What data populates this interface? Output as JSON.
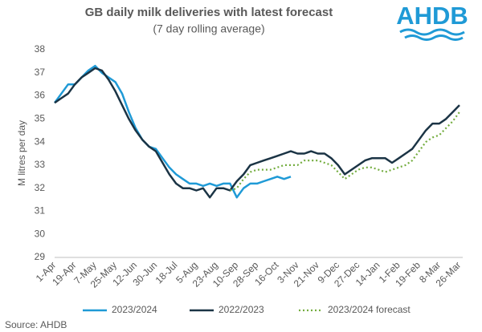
{
  "chart_data": {
    "type": "line",
    "title": "GB daily milk deliveries with latest forecast",
    "subtitle": "(7 day rolling average)",
    "y_label": "M litres per day",
    "source": "Source: AHDB",
    "logo": "AHDB",
    "categories": [
      "1-Apr",
      null,
      null,
      "19-Apr",
      null,
      null,
      "7-May",
      null,
      null,
      "25-May",
      null,
      null,
      "12-Jun",
      null,
      null,
      "30-Jun",
      null,
      null,
      "18-Jul",
      null,
      null,
      "5-Aug",
      null,
      null,
      "23-Aug",
      null,
      null,
      "10-Sep",
      null,
      null,
      "28-Sep",
      null,
      null,
      "16-Oct",
      null,
      null,
      "3-Nov",
      null,
      null,
      "21-Nov",
      null,
      null,
      "9-Dec",
      null,
      null,
      "27-Dec",
      null,
      null,
      "14-Jan",
      null,
      null,
      "1-Feb",
      null,
      null,
      "19-Feb",
      null,
      null,
      "8-Mar",
      null,
      null,
      "26-Mar"
    ],
    "series": [
      {
        "name": "2023/2024",
        "color": "#1f9ad6",
        "dash": "solid",
        "values": [
          35.7,
          36.1,
          36.5,
          36.5,
          36.8,
          37.1,
          37.3,
          37.0,
          36.8,
          36.6,
          36.1,
          35.3,
          34.6,
          34.1,
          33.8,
          33.7,
          33.3,
          32.9,
          32.6,
          32.4,
          32.2,
          32.2,
          32.1,
          32.2,
          32.1,
          32.2,
          32.2,
          31.6,
          32.0,
          32.2,
          32.2,
          32.3,
          32.4,
          32.5,
          32.4,
          32.5,
          null,
          null,
          null,
          null,
          null,
          null,
          null,
          null,
          null,
          null,
          null,
          null,
          null,
          null,
          null,
          null,
          null,
          null,
          null,
          null,
          null,
          null,
          null,
          null,
          null
        ]
      },
      {
        "name": "2022/2023",
        "color": "#1b3445",
        "dash": "solid",
        "values": [
          35.7,
          35.9,
          36.1,
          36.5,
          36.8,
          37.0,
          37.2,
          37.1,
          36.7,
          36.2,
          35.6,
          35.0,
          34.5,
          34.1,
          33.8,
          33.6,
          33.1,
          32.6,
          32.2,
          32.0,
          32.0,
          31.9,
          32.0,
          31.6,
          32.0,
          32.0,
          31.9,
          32.3,
          32.6,
          33.0,
          33.1,
          33.2,
          33.3,
          33.4,
          33.5,
          33.6,
          33.5,
          33.5,
          33.6,
          33.5,
          33.5,
          33.3,
          33.0,
          32.6,
          32.8,
          33.0,
          33.2,
          33.3,
          33.3,
          33.3,
          33.1,
          33.3,
          33.5,
          33.7,
          34.1,
          34.5,
          34.8,
          34.8,
          35.0,
          35.3,
          35.6
        ]
      },
      {
        "name": "2023/2024 forecast",
        "color": "#74ad3f",
        "dash": "dotted",
        "values": [
          null,
          null,
          null,
          null,
          null,
          null,
          null,
          null,
          null,
          null,
          null,
          null,
          null,
          null,
          null,
          null,
          null,
          null,
          null,
          null,
          null,
          null,
          null,
          null,
          null,
          null,
          31.9,
          32.0,
          32.4,
          32.7,
          32.8,
          32.8,
          32.8,
          32.9,
          33.0,
          33.0,
          33.0,
          33.2,
          33.2,
          33.2,
          33.1,
          33.0,
          32.7,
          32.4,
          32.6,
          32.8,
          32.9,
          32.9,
          32.8,
          32.7,
          32.8,
          32.9,
          33.0,
          33.2,
          33.6,
          34.0,
          34.2,
          34.3,
          34.6,
          34.9,
          35.3
        ]
      }
    ],
    "ylim": [
      29,
      38
    ],
    "yticks": [
      29,
      30,
      31,
      32,
      33,
      34,
      35,
      36,
      37,
      38
    ],
    "grid": false,
    "legend": "bottom"
  }
}
